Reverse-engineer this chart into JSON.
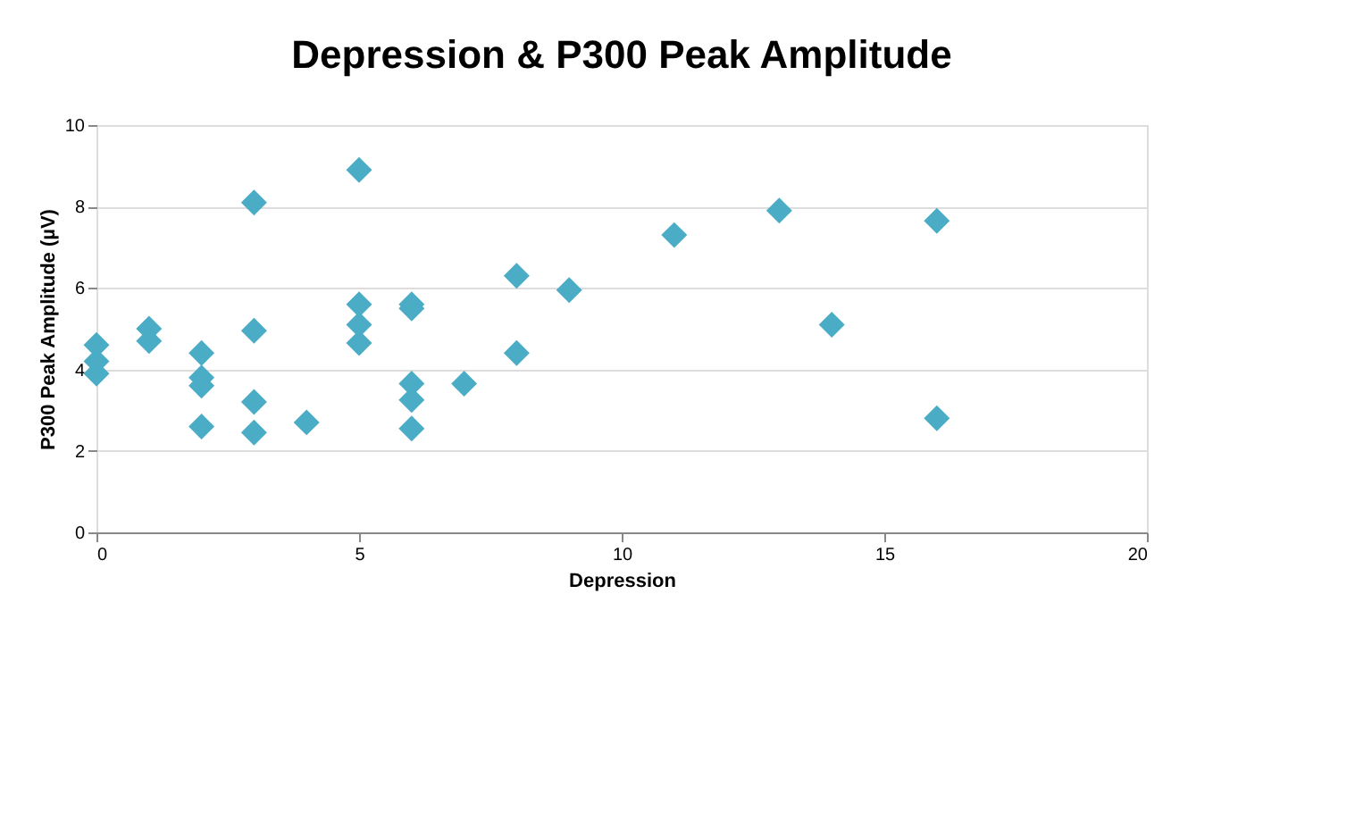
{
  "chart_data": {
    "type": "scatter",
    "title": "Depression & P300 Peak Amplitude",
    "xlabel": "Depression",
    "ylabel": "P300 Peak Amplitude (µV)",
    "x": [
      0,
      0,
      0,
      1,
      1,
      2,
      2,
      2,
      2,
      3,
      3,
      3,
      3,
      4,
      5,
      5,
      5,
      5,
      6,
      6,
      6,
      6,
      6,
      7,
      8,
      8,
      9,
      11,
      13,
      14,
      16,
      16
    ],
    "series": [
      {
        "color": "#4bacc6",
        "values": [
          4.6,
          4.2,
          3.9,
          5.0,
          4.7,
          4.4,
          3.8,
          3.6,
          2.6,
          8.1,
          4.95,
          3.2,
          2.45,
          2.7,
          8.9,
          5.6,
          5.1,
          4.65,
          5.6,
          5.5,
          3.65,
          3.25,
          2.55,
          3.65,
          6.3,
          4.4,
          5.95,
          7.3,
          7.9,
          5.1,
          7.65,
          2.8
        ]
      }
    ],
    "xlim": [
      0,
      20
    ],
    "xticks": [
      0,
      5,
      10,
      15,
      20
    ],
    "ylim": [
      0,
      10
    ],
    "yticks": [
      0,
      2,
      4,
      6,
      8,
      10
    ],
    "grid": "y",
    "marker": "diamond",
    "legend": false
  }
}
